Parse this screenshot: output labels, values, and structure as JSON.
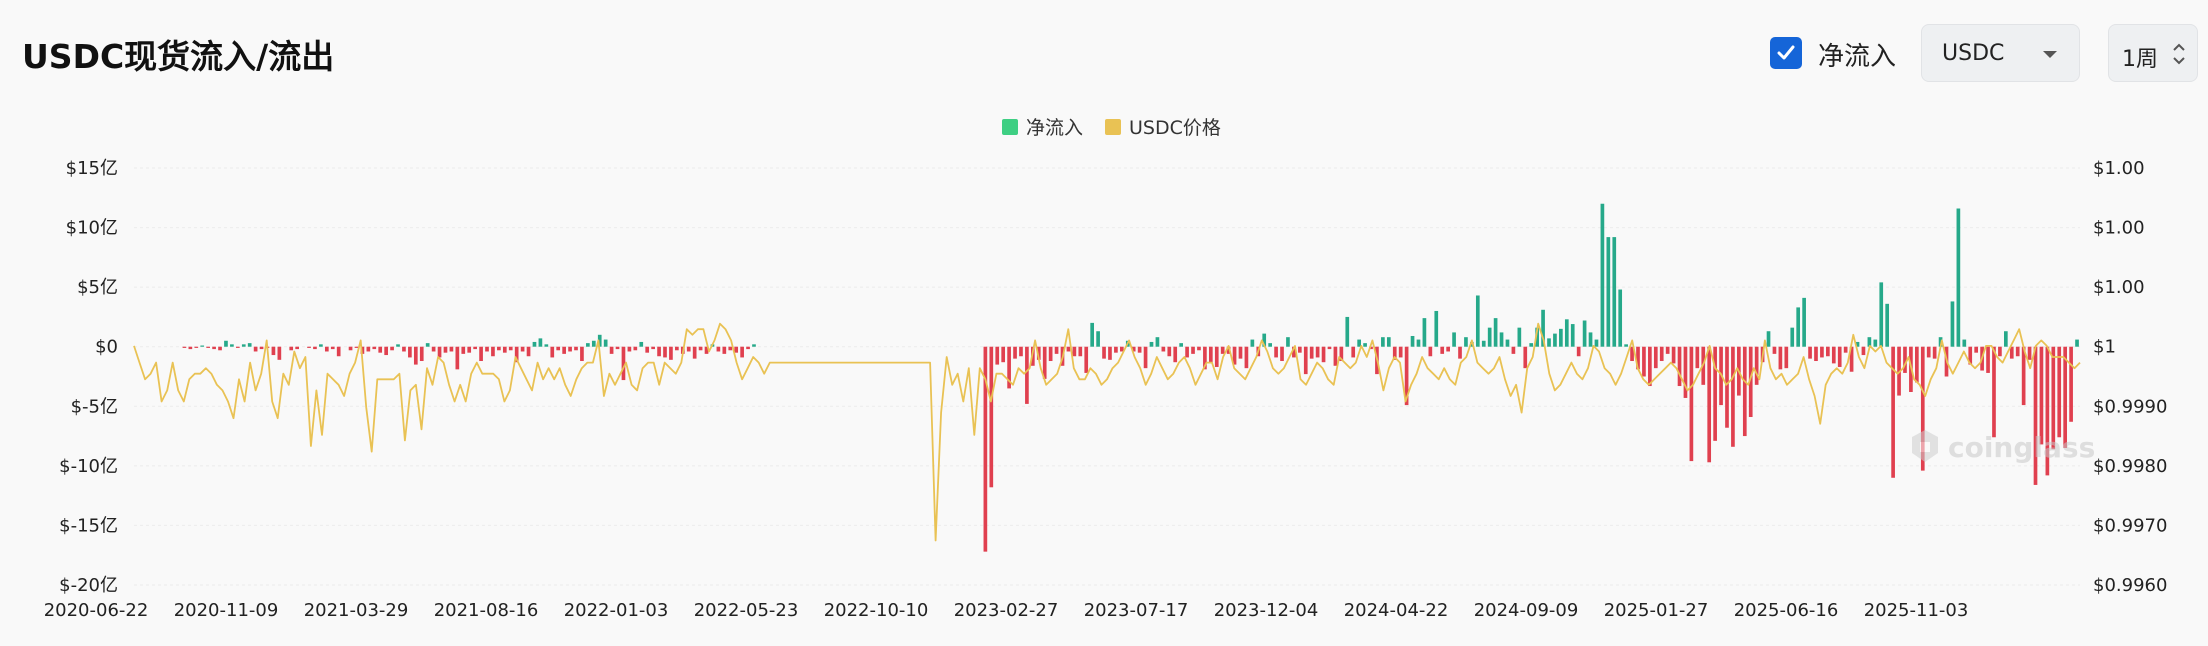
{
  "header": {
    "title": "USDC现货流入/流出",
    "net_flow_checkbox_label": "净流入",
    "asset_select_value": "USDC",
    "period_value": "1周"
  },
  "legend": [
    {
      "label": "净流入",
      "color": "#3ecf83"
    },
    {
      "label": "USDC价格",
      "color": "#e9c254"
    }
  ],
  "watermark": "coinglass",
  "colors": {
    "inflow": "#26a98a",
    "outflow": "#e0404f",
    "price": "#e9c254",
    "grid": "#ececec"
  },
  "chart_data": {
    "type": "bar",
    "left_axis": {
      "ticks": [
        "$15亿",
        "$10亿",
        "$5亿",
        "$0",
        "$-5亿",
        "$-10亿",
        "$-15亿",
        "$-20亿"
      ],
      "ylim": [
        -20,
        15
      ],
      "unit": "亿"
    },
    "right_axis": {
      "ticks": [
        "$1.00",
        "$1.00",
        "$1.00",
        "$1",
        "$0.9990",
        "$0.9980",
        "$0.9970",
        "$0.9960"
      ],
      "ylim": [
        0.996,
        1.0035
      ]
    },
    "x_tick_labels": [
      "2020-06-22",
      "2020-11-09",
      "2021-03-29",
      "2021-08-16",
      "2022-01-03",
      "2022-05-23",
      "2022-10-10",
      "2023-02-27",
      "2023-07-17",
      "2023-12-04",
      "2024-04-22",
      "2024-09-09",
      "2025-01-27",
      "2025-06-16",
      "2025-11-03"
    ],
    "grid": true,
    "legend_position": "top-center",
    "series": [
      {
        "name": "净流入",
        "kind": "bar",
        "values": [
          0,
          0,
          0,
          0,
          0,
          0,
          0,
          0,
          -0.1,
          -0.2,
          -0.1,
          0.1,
          -0.1,
          -0.2,
          -0.3,
          0.5,
          0.2,
          -0.1,
          0.2,
          0.3,
          -0.4,
          -0.2,
          -0.1,
          -0.7,
          -1.1,
          0,
          -0.3,
          -0.2,
          0,
          -0.1,
          -0.2,
          0.2,
          -0.4,
          -0.2,
          -0.8,
          0,
          -0.3,
          -0.1,
          -0.6,
          -0.4,
          -0.2,
          -0.5,
          -0.7,
          -0.3,
          0.2,
          -0.4,
          -0.9,
          -1.5,
          -1.2,
          0.3,
          -0.4,
          -0.9,
          -0.5,
          -0.4,
          -1.9,
          -0.6,
          -0.5,
          -0.2,
          -1.2,
          -0.4,
          -0.8,
          -0.3,
          -0.5,
          -0.3,
          -1.3,
          -0.4,
          -0.8,
          0.4,
          0.7,
          0.2,
          -0.9,
          -0.3,
          -0.6,
          -0.4,
          -0.3,
          -1.2,
          0.3,
          0.5,
          1,
          0.6,
          -0.6,
          -0.2,
          -2.8,
          -0.4,
          -0.3,
          0.4,
          -0.5,
          -0.2,
          -0.8,
          -0.9,
          -1.1,
          -0.3,
          -0.6,
          -0.4,
          -1,
          -0.3,
          -0.6,
          0.2,
          -0.4,
          -0.6,
          -0.3,
          -0.5,
          -0.9,
          -0.2,
          0.2,
          0,
          0,
          0,
          0,
          0,
          0,
          0,
          0,
          0,
          0,
          0,
          0,
          0,
          0,
          0,
          0,
          0,
          0,
          0,
          0,
          0,
          0,
          0,
          0,
          0,
          0,
          0,
          0,
          0,
          0,
          0,
          0,
          0,
          0,
          0,
          0,
          0,
          0,
          -17.2,
          -11.8,
          -1.5,
          -1.3,
          -3.5,
          -1,
          -0.8,
          -4.8,
          -1.6,
          -1.1,
          -2.7,
          -1.2,
          -0.6,
          -1.6,
          -0.4,
          -0.8,
          -0.8,
          -2.2,
          2,
          1.3,
          -1,
          -1.1,
          -0.5,
          -0.4,
          0.5,
          -0.4,
          -0.5,
          -1.8,
          0.4,
          0.8,
          -0.4,
          -0.8,
          -1.3,
          0.3,
          -0.9,
          -0.6,
          -0.3,
          -1.9,
          -1.4,
          -1.7,
          -0.6,
          -0.6,
          -1.5,
          -1,
          -1.8,
          0.6,
          -0.8,
          1.1,
          0.3,
          -0.9,
          -1.2,
          0.8,
          -0.9,
          -0.5,
          -2.3,
          -1,
          -0.9,
          -1.3,
          -0.2,
          -1.6,
          -1.2,
          2.5,
          -0.9,
          0.6,
          0.3,
          -0.2,
          -2.3,
          0.8,
          0.8,
          -1.1,
          -0.9,
          -4.9,
          0.9,
          0.6,
          2.4,
          -0.8,
          3,
          -0.6,
          -0.4,
          1.2,
          -1,
          0.8,
          0.4,
          4.3,
          0.5,
          1.6,
          2.4,
          1.2,
          0.6,
          -0.6,
          1.6,
          -1.8,
          0.3,
          1.6,
          3.1,
          0.7,
          1.1,
          1.5,
          2.3,
          1.9,
          -0.8,
          2.2,
          1.2,
          0.6,
          12,
          9.2,
          9.2,
          4.8,
          0.2,
          -1.2,
          -1.9,
          -2.5,
          -3.3,
          -1.8,
          -1.2,
          -0.6,
          -1.4,
          -3.3,
          -4.3,
          -9.6,
          -1.8,
          -3.2,
          -9.7,
          -7.9,
          -4.9,
          -6.8,
          -8.4,
          -4.1,
          -7.5,
          -5.9,
          -3.2,
          -1.3,
          1.3,
          -0.6,
          -1.9,
          -1.8,
          1.6,
          3.3,
          4.1,
          -1,
          -1.2,
          -0.9,
          -0.8,
          -1.4,
          -1.7,
          -0.5,
          -2.1,
          0.4,
          -0.7,
          0.8,
          0.6,
          5.4,
          3.6,
          -11,
          -4.1,
          -2.2,
          -3.8,
          -3,
          -10.4,
          -0.9,
          -1,
          0.8,
          -2.5,
          3.8,
          11.6,
          0.6,
          -1.5,
          -0.5,
          -2,
          -2.2,
          -7.6,
          -0.8,
          1.3,
          -1,
          -0.8,
          -4.9,
          -1.1,
          -11.6,
          -8.2,
          -10.8,
          -8.6,
          -7.6,
          -8.5,
          -6.3,
          0.6
        ]
      },
      {
        "name": "USDC价格",
        "kind": "line",
        "values": [
          1.0003,
          1.0,
          0.9997,
          0.9998,
          1.0,
          0.9993,
          0.9995,
          1.0,
          0.9995,
          0.9993,
          0.9997,
          0.9998,
          0.9998,
          0.9999,
          0.9998,
          0.9996,
          0.9995,
          0.9993,
          0.999,
          0.9997,
          0.9993,
          1.0,
          0.9995,
          0.9998,
          1.0004,
          0.9993,
          0.999,
          0.9998,
          0.9996,
          1.0002,
          0.9999,
          1.0001,
          0.9985,
          0.9995,
          0.9987,
          0.9998,
          0.9997,
          0.9996,
          0.9994,
          0.9998,
          1.0,
          1.0004,
          0.9992,
          0.9984,
          0.9997,
          0.9997,
          0.9997,
          0.9997,
          0.9998,
          0.9986,
          0.9995,
          0.9996,
          0.9988,
          0.9999,
          0.9996,
          1.0001,
          1.0,
          0.9996,
          0.9993,
          0.9996,
          0.9993,
          0.9998,
          1.0,
          0.9998,
          0.9998,
          0.9998,
          0.9997,
          0.9993,
          0.9995,
          1.0001,
          0.9999,
          0.9997,
          0.9995,
          1.0,
          0.9997,
          0.9999,
          0.9997,
          0.9999,
          0.9996,
          0.9994,
          0.9997,
          0.9999,
          1.0,
          1.0,
          1.0004,
          0.9994,
          0.9998,
          0.9996,
          0.9998,
          1.0,
          0.9996,
          0.9995,
          0.9999,
          1.0,
          1.0,
          0.9996,
          1.0,
          0.9999,
          0.9998,
          1.0,
          1.0006,
          1.0005,
          1.0006,
          1.0006,
          1.0002,
          1.0004,
          1.0007,
          1.0006,
          1.0004,
          1.0,
          0.9997,
          0.9999,
          1.0001,
          1.0,
          0.9998,
          1.0,
          1.0,
          1.0,
          1.0,
          1.0,
          1.0,
          1.0,
          1.0,
          1.0,
          1.0,
          1.0,
          1.0,
          1.0,
          1.0,
          1.0,
          1.0,
          1.0,
          1.0,
          1.0,
          1.0,
          1.0,
          1.0,
          1.0,
          1.0,
          1.0,
          1.0,
          1.0,
          1.0,
          1.0,
          1.0,
          0.9968,
          0.9991,
          1.0001,
          0.9996,
          0.9998,
          0.9993,
          0.9999,
          0.9987,
          0.9999,
          0.9997,
          0.9993,
          0.9998,
          0.9998,
          0.9997,
          0.9996,
          0.9999,
          0.9998,
          0.9999,
          1.0004,
          0.9999,
          0.9996,
          0.9997,
          0.9998,
          1.0001,
          1.0006,
          0.9999,
          0.9997,
          0.9997,
          0.9999,
          0.9998,
          0.9996,
          0.9997,
          0.9999,
          1.0,
          1.0002,
          1.0004,
          1.0001,
          0.9999,
          0.9996,
          0.9998,
          1.0001,
          0.9999,
          0.9997,
          0.9998,
          1.0,
          1.0001,
          0.9999,
          0.9996,
          0.9998,
          1.0,
          1.0,
          0.9997,
          1.0001,
          1.0003,
          0.9999,
          0.9998,
          0.9997,
          0.9999,
          1.0001,
          1.0004,
          1.0002,
          0.9999,
          0.9998,
          0.9999,
          1.0001,
          1.0003,
          0.9997,
          0.9996,
          0.9998,
          1.0,
          0.9999,
          0.9997,
          0.9996,
          1.0001,
          1.0,
          0.9999,
          1.0,
          1.0003,
          1.0001,
          1.0004,
          1.0,
          0.9995,
          0.9999,
          1.0001,
          1.0,
          0.9993,
          0.9996,
          0.9998,
          1.0001,
          0.9999,
          0.9998,
          0.9997,
          0.9999,
          0.9997,
          0.9996,
          1.0,
          1.0001,
          1.0004,
          1.0,
          0.9999,
          0.9998,
          0.9999,
          1.0001,
          0.9997,
          0.9994,
          0.9996,
          0.9991,
          0.9999,
          1.0001,
          1.0007,
          1.0004,
          0.9998,
          0.9995,
          0.9996,
          0.9998,
          1.0,
          0.9998,
          0.9997,
          0.9999,
          1.0003,
          1.0002,
          0.9999,
          0.9998,
          0.9996,
          0.9998,
          1.0001,
          1.0004,
          0.9999,
          0.9997,
          0.9996,
          0.9997,
          0.9998,
          0.9999,
          1.0,
          0.9999,
          0.9997,
          0.9995,
          0.9996,
          0.9998,
          1.0,
          1.0003,
          0.9999,
          0.9998,
          0.9996,
          0.9997,
          0.9999,
          0.9997,
          0.9996,
          0.9999,
          0.9997,
          1.0004,
          0.9999,
          0.9997,
          0.9998,
          0.9996,
          0.9997,
          0.9998,
          1.0001,
          0.9997,
          0.9994,
          0.9989,
          0.9996,
          0.9998,
          0.9999,
          0.9998,
          1.0,
          1.0005,
          1.0001,
          0.9999,
          1.0003,
          1.0002,
          1.0003,
          1.0,
          0.9999,
          0.9998,
          0.9999,
          1.0001,
          0.9997,
          0.9996,
          0.9994,
          0.9997,
          0.9999,
          1.0004,
          1.0,
          0.9998,
          1.0,
          1.0002,
          1.0,
          0.9999,
          1.0,
          1.0003,
          1.0003,
          1.0001,
          1.0,
          1.0002,
          1.0004,
          1.0006,
          1.0002,
          0.9999,
          1.0003,
          1.0004,
          1.0003,
          1.0001,
          1.0001,
          1.0001,
          1.0,
          0.9999,
          1.0
        ]
      }
    ]
  }
}
